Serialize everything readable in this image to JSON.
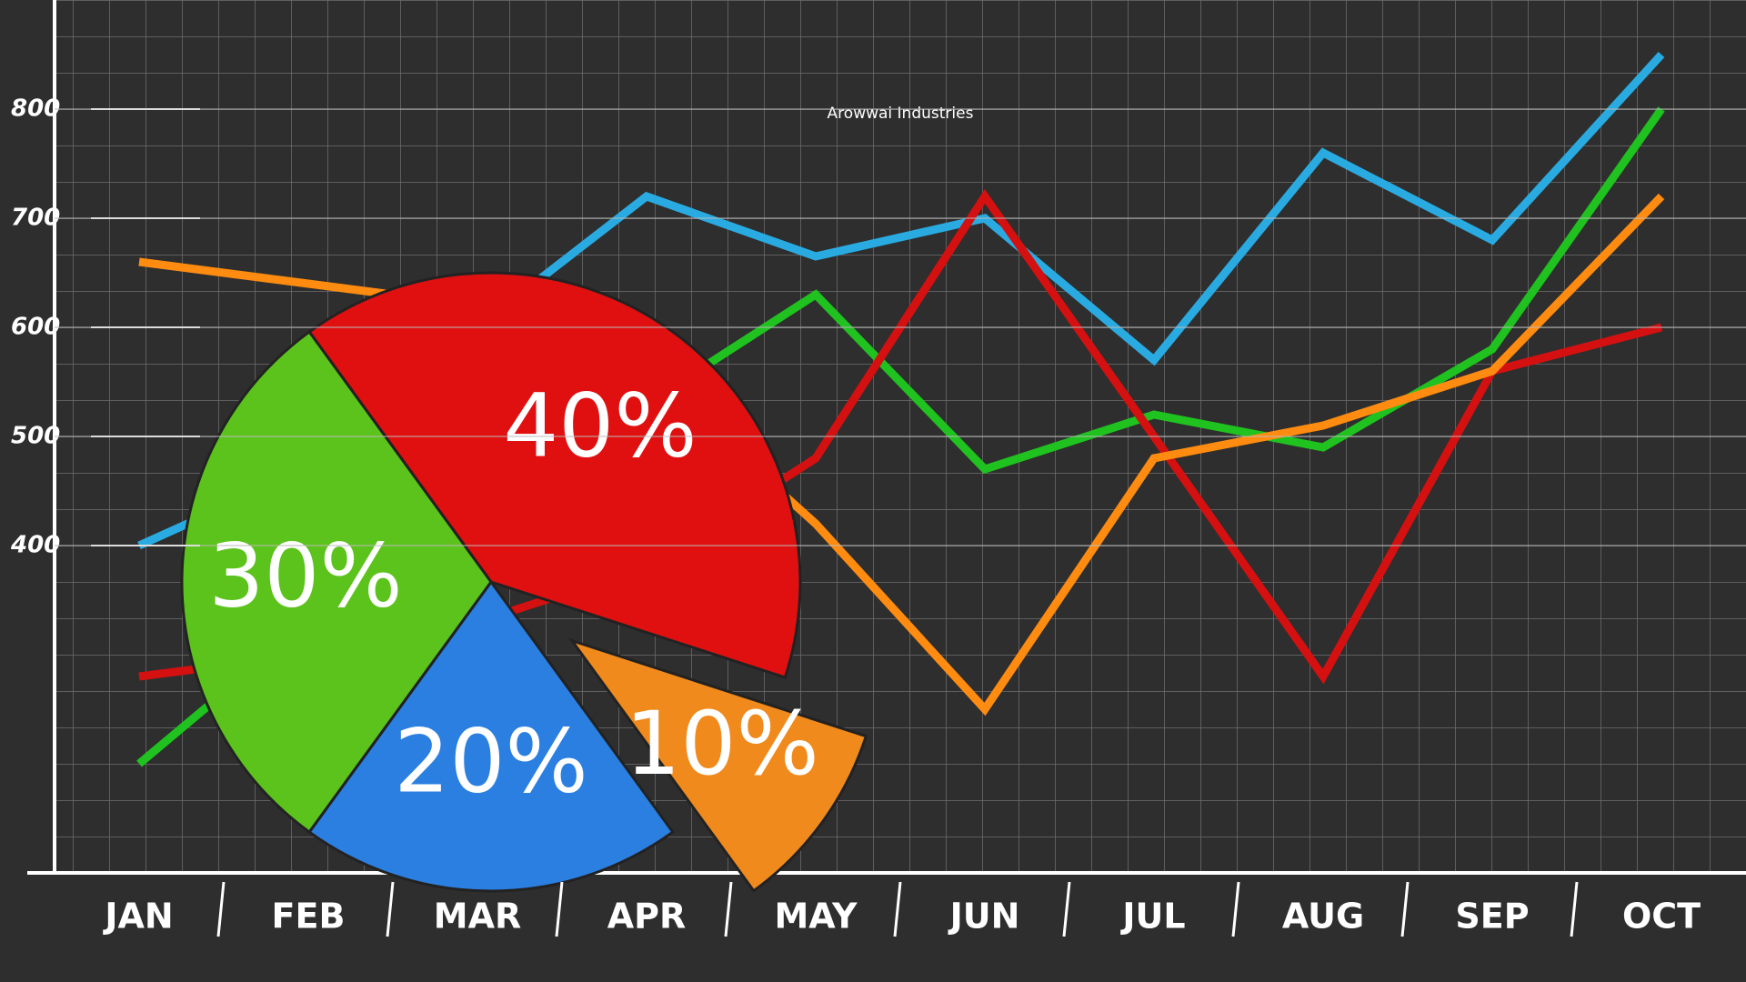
{
  "chart_data": [
    {
      "type": "line",
      "annotation": "Arowwai Industries",
      "categories": [
        "JAN",
        "FEB",
        "MAR",
        "APR",
        "MAY",
        "JUN",
        "JUL",
        "AUG",
        "SEP",
        "OCT"
      ],
      "series": [
        {
          "color": "#29abe2",
          "values": [
            400,
            470,
            600,
            720,
            665,
            700,
            570,
            760,
            680,
            850
          ]
        },
        {
          "color": "#1fc21f",
          "values": [
            200,
            330,
            440,
            530,
            630,
            470,
            520,
            490,
            580,
            800
          ]
        },
        {
          "color": "#d41010",
          "values": [
            280,
            300,
            330,
            380,
            480,
            720,
            500,
            280,
            560,
            600
          ]
        },
        {
          "color": "#ff8c10",
          "values": [
            660,
            640,
            620,
            560,
            420,
            250,
            480,
            510,
            560,
            720
          ]
        }
      ],
      "ylim": [
        100,
        900
      ],
      "yticks": [
        400,
        500,
        600,
        700,
        800
      ],
      "grid": true
    },
    {
      "type": "pie",
      "values": [
        40,
        10,
        20,
        30
      ],
      "value_labels": [
        "40%",
        "10%",
        "20%",
        "30%"
      ],
      "colors": [
        "#e01010",
        "#f08a1c",
        "#2a7fe0",
        "#5cc21c"
      ]
    }
  ]
}
